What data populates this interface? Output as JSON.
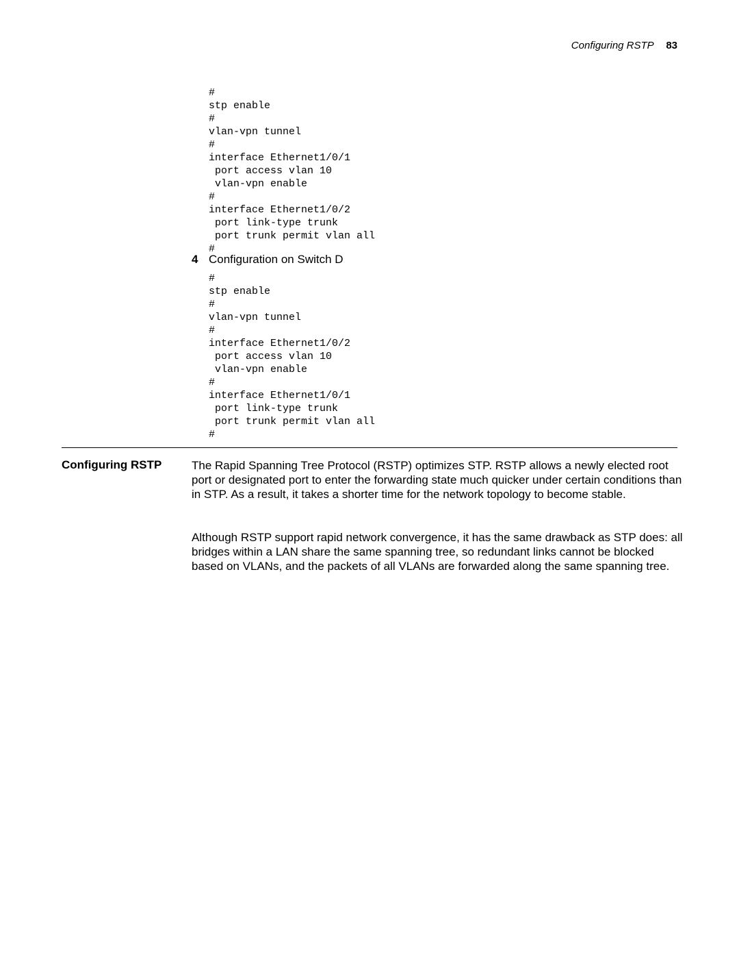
{
  "header": {
    "title": "Configuring RSTP",
    "page_number": "83"
  },
  "code_block_1": "#\nstp enable\n#\nvlan-vpn tunnel\n#\ninterface Ethernet1/0/1\n port access vlan 10\n vlan-vpn enable\n#\ninterface Ethernet1/0/2\n port link-type trunk\n port trunk permit vlan all\n#",
  "step4": {
    "number": "4",
    "text": "Configuration on Switch D"
  },
  "code_block_2": "#\nstp enable\n#\nvlan-vpn tunnel\n#\ninterface Ethernet1/0/2\n port access vlan 10\n vlan-vpn enable\n#\ninterface Ethernet1/0/1\n port link-type trunk\n port trunk permit vlan all\n#",
  "section": {
    "heading": "Configuring RSTP",
    "para1": "The Rapid Spanning Tree Protocol (RSTP) optimizes STP. RSTP allows a newly elected root port or designated port to enter the forwarding state much quicker under certain conditions than in STP. As a result, it takes a shorter time for the network topology to become stable.",
    "para2": "Although RSTP support rapid network convergence, it has the same drawback as STP does: all bridges within a LAN share the same spanning tree, so redundant links cannot be blocked based on VLANs, and the packets of all VLANs are forwarded along the same spanning tree."
  }
}
